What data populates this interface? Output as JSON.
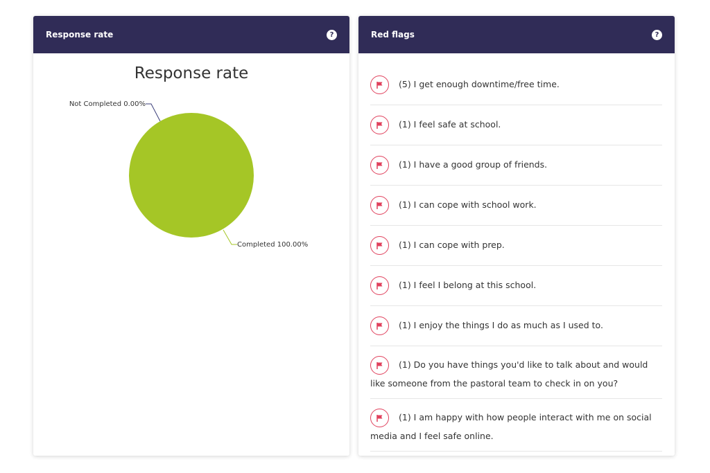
{
  "left": {
    "title": "Response rate",
    "help": "?"
  },
  "right": {
    "title": "Red flags",
    "help": "?",
    "items": [
      {
        "text": "(5) I get enough downtime/free time."
      },
      {
        "text": "(1) I feel safe at school."
      },
      {
        "text": "(1) I have a good group of friends."
      },
      {
        "text": "(1) I can cope with school work."
      },
      {
        "text": "(1) I can cope with prep."
      },
      {
        "text": "(1) I feel I belong at this school."
      },
      {
        "text": "(1) I enjoy the things I do as much as I used to."
      },
      {
        "text": "(1) Do you have things you'd like to talk about and would like someone from the pastoral team to check in on you?"
      },
      {
        "text": "(1) I am happy with how people interact with me on social media and I feel safe online."
      }
    ]
  },
  "chart_data": {
    "type": "pie",
    "title": "Response rate",
    "slices": [
      {
        "label": "Not Completed 0.00%",
        "name": "Not Completed",
        "value": 0,
        "color": "#3b3f7a"
      },
      {
        "label": "Completed 100.00%",
        "name": "Completed",
        "value": 100,
        "color": "#a5c626"
      }
    ]
  }
}
